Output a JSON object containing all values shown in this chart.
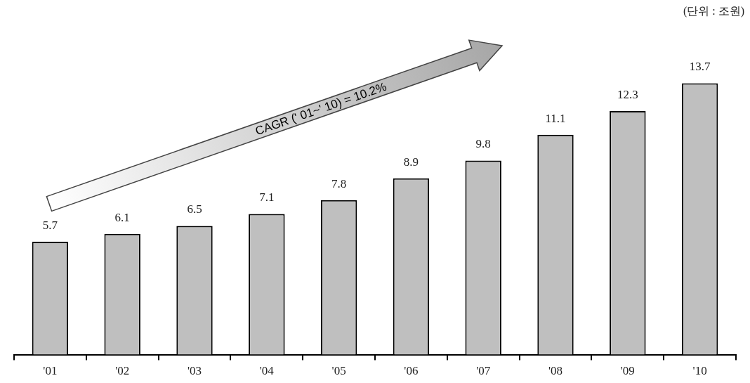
{
  "chart_data": {
    "type": "bar",
    "categories": [
      "'01",
      "'02",
      "'03",
      "'04",
      "'05",
      "'06",
      "'07",
      "'08",
      "'09",
      "'10"
    ],
    "values": [
      5.7,
      6.1,
      6.5,
      7.1,
      7.8,
      8.9,
      9.8,
      11.1,
      12.3,
      13.7
    ],
    "color": "#bfbfbf",
    "data_labels": true,
    "grid": false,
    "legend": false,
    "annotations": [
      "(단위 : 조원)",
      "CAGR (' 01~' 10) = 10.2%"
    ]
  }
}
